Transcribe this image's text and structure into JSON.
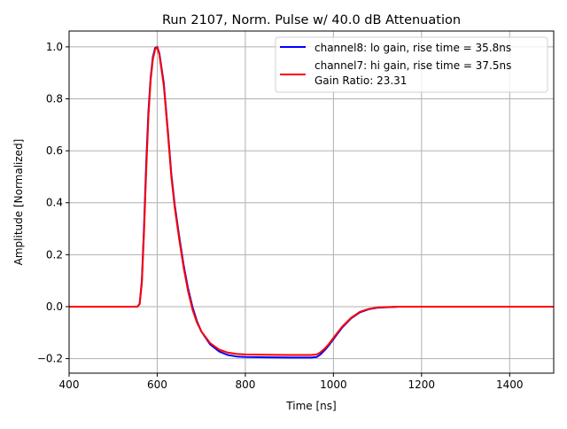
{
  "chart_data": {
    "type": "line",
    "title": "Run 2107, Norm. Pulse w/ 40.0 dB Attenuation",
    "xlabel": "Time [ns]",
    "ylabel": "Amplitude [Normalized]",
    "xlim": [
      400,
      1500
    ],
    "ylim": [
      -0.256,
      1.061
    ],
    "xticks": [
      400,
      600,
      800,
      1000,
      1200,
      1400
    ],
    "yticks": [
      -0.2,
      0.0,
      0.2,
      0.4,
      0.6,
      0.8,
      1.0
    ],
    "xtick_labels": [
      "400",
      "600",
      "800",
      "1000",
      "1200",
      "1400"
    ],
    "ytick_labels": [
      "−0.2",
      "0.0",
      "0.2",
      "0.4",
      "0.6",
      "0.8",
      "1.0"
    ],
    "grid": true,
    "legend_placement": "top-right",
    "legend_extra": "Gain Ratio: 23.31",
    "series": [
      {
        "name": "channel8: lo gain, rise time = 35.8ns",
        "color": "#0000ff",
        "x": [
          400,
          555,
          560,
          565,
          570,
          575,
          580,
          585,
          590,
          595,
          600,
          605,
          615,
          625,
          632,
          640,
          650,
          660,
          670,
          680,
          690,
          700,
          720,
          740,
          760,
          780,
          800,
          850,
          900,
          950,
          962,
          970,
          980,
          990,
          1000,
          1020,
          1040,
          1060,
          1080,
          1100,
          1150,
          1500
        ],
        "y": [
          0,
          0,
          0.01,
          0.1,
          0.3,
          0.55,
          0.75,
          0.88,
          0.96,
          0.995,
          1.0,
          0.975,
          0.86,
          0.66,
          0.51,
          0.39,
          0.27,
          0.16,
          0.07,
          0.0,
          -0.055,
          -0.095,
          -0.145,
          -0.172,
          -0.186,
          -0.192,
          -0.194,
          -0.195,
          -0.196,
          -0.196,
          -0.194,
          -0.185,
          -0.168,
          -0.148,
          -0.125,
          -0.08,
          -0.045,
          -0.022,
          -0.01,
          -0.004,
          0,
          0
        ]
      },
      {
        "name": "channel7: hi gain, rise time = 37.5ns",
        "color": "#ff0000",
        "x": [
          400,
          555,
          560,
          565,
          570,
          575,
          580,
          585,
          590,
          595,
          600,
          605,
          615,
          625,
          632,
          640,
          650,
          660,
          670,
          680,
          690,
          700,
          720,
          740,
          760,
          780,
          800,
          850,
          900,
          950,
          962,
          970,
          980,
          990,
          1000,
          1020,
          1040,
          1060,
          1080,
          1100,
          1150,
          1500
        ],
        "y": [
          0,
          0,
          0.01,
          0.09,
          0.28,
          0.52,
          0.73,
          0.87,
          0.95,
          0.99,
          1.0,
          0.97,
          0.85,
          0.65,
          0.5,
          0.38,
          0.26,
          0.15,
          0.06,
          -0.01,
          -0.06,
          -0.095,
          -0.14,
          -0.165,
          -0.177,
          -0.182,
          -0.184,
          -0.185,
          -0.186,
          -0.186,
          -0.184,
          -0.177,
          -0.162,
          -0.143,
          -0.12,
          -0.077,
          -0.043,
          -0.02,
          -0.009,
          -0.003,
          0,
          0
        ]
      }
    ]
  }
}
